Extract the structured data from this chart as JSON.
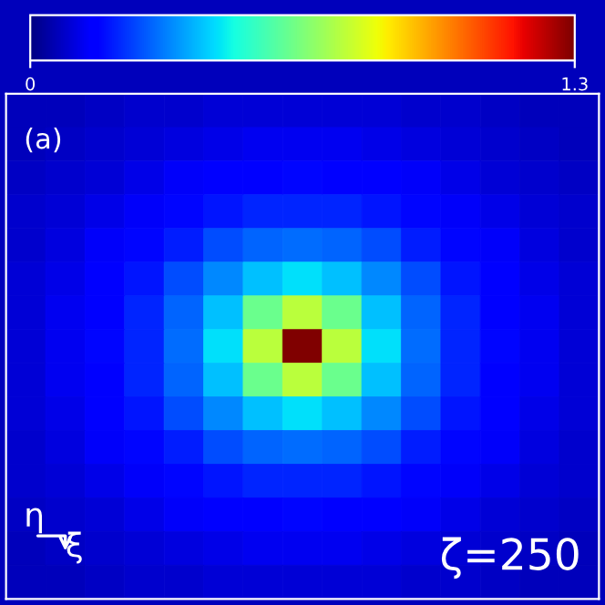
{
  "chart_data": {
    "type": "heatmap",
    "categories": [
      null,
      null,
      null,
      null,
      null,
      null,
      null,
      null,
      null,
      null,
      null,
      null,
      null,
      null,
      null
    ],
    "y_categories": [
      null,
      null,
      null,
      null,
      null,
      null,
      null,
      null,
      null,
      null,
      null,
      null,
      null,
      null,
      null
    ],
    "cells": [
      [
        0.07,
        0.07,
        0.08,
        0.09,
        0.09,
        0.1,
        0.1,
        0.1,
        0.1,
        0.1,
        0.09,
        0.09,
        0.08,
        0.07,
        0.07
      ],
      [
        0.07,
        0.08,
        0.09,
        0.1,
        0.11,
        0.12,
        0.13,
        0.13,
        0.13,
        0.12,
        0.11,
        0.1,
        0.09,
        0.08,
        0.07
      ],
      [
        0.08,
        0.09,
        0.1,
        0.12,
        0.14,
        0.15,
        0.16,
        0.17,
        0.16,
        0.15,
        0.14,
        0.12,
        0.1,
        0.09,
        0.08
      ],
      [
        0.09,
        0.1,
        0.12,
        0.14,
        0.17,
        0.19,
        0.21,
        0.21,
        0.21,
        0.19,
        0.17,
        0.14,
        0.12,
        0.1,
        0.09
      ],
      [
        0.09,
        0.11,
        0.14,
        0.17,
        0.2,
        0.26,
        0.29,
        0.3,
        0.29,
        0.26,
        0.2,
        0.17,
        0.14,
        0.11,
        0.09
      ],
      [
        0.1,
        0.12,
        0.15,
        0.19,
        0.26,
        0.34,
        0.41,
        0.45,
        0.41,
        0.34,
        0.26,
        0.19,
        0.15,
        0.12,
        0.1
      ],
      [
        0.1,
        0.13,
        0.16,
        0.21,
        0.29,
        0.41,
        0.62,
        0.75,
        0.62,
        0.41,
        0.29,
        0.21,
        0.16,
        0.13,
        0.1
      ],
      [
        0.1,
        0.13,
        0.17,
        0.21,
        0.3,
        0.45,
        0.75,
        1.3,
        0.75,
        0.45,
        0.3,
        0.21,
        0.17,
        0.13,
        0.1
      ],
      [
        0.1,
        0.13,
        0.16,
        0.21,
        0.29,
        0.41,
        0.62,
        0.75,
        0.62,
        0.41,
        0.29,
        0.21,
        0.16,
        0.13,
        0.1
      ],
      [
        0.1,
        0.12,
        0.15,
        0.19,
        0.26,
        0.34,
        0.41,
        0.45,
        0.41,
        0.34,
        0.26,
        0.19,
        0.15,
        0.12,
        0.1
      ],
      [
        0.09,
        0.11,
        0.14,
        0.17,
        0.2,
        0.26,
        0.29,
        0.3,
        0.29,
        0.26,
        0.2,
        0.17,
        0.14,
        0.11,
        0.09
      ],
      [
        0.09,
        0.1,
        0.12,
        0.14,
        0.17,
        0.19,
        0.21,
        0.21,
        0.21,
        0.19,
        0.17,
        0.14,
        0.12,
        0.1,
        0.09
      ],
      [
        0.08,
        0.09,
        0.1,
        0.12,
        0.14,
        0.15,
        0.16,
        0.17,
        0.16,
        0.15,
        0.14,
        0.12,
        0.1,
        0.09,
        0.08
      ],
      [
        0.07,
        0.08,
        0.09,
        0.1,
        0.11,
        0.12,
        0.13,
        0.13,
        0.13,
        0.12,
        0.11,
        0.1,
        0.09,
        0.08,
        0.07
      ],
      [
        0.07,
        0.07,
        0.08,
        0.09,
        0.09,
        0.1,
        0.1,
        0.1,
        0.1,
        0.1,
        0.09,
        0.09,
        0.08,
        0.07,
        0.07
      ]
    ],
    "clim": [
      0,
      1.3
    ],
    "cticks": [
      0,
      1.3
    ],
    "annotations": [
      "(a)",
      "η",
      "ξ",
      "ζ=250"
    ]
  }
}
